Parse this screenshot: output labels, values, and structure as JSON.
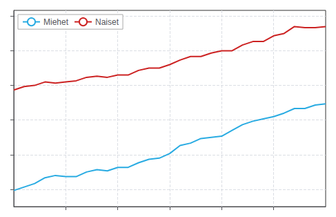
{
  "chart_data": {
    "type": "line",
    "x": [
      1979,
      1980,
      1981,
      1982,
      1983,
      1984,
      1985,
      1986,
      1987,
      1988,
      1989,
      1990,
      1991,
      1992,
      1993,
      1994,
      1995,
      1996,
      1997,
      1998,
      1999,
      2000,
      2001,
      2002,
      2003,
      2004,
      2005,
      2006,
      2007,
      2008,
      2009
    ],
    "series": [
      {
        "name": "Miehet",
        "color": "#29ABE2",
        "values": [
          68.9,
          69.2,
          69.5,
          70.0,
          70.2,
          70.1,
          70.1,
          70.5,
          70.7,
          70.6,
          70.9,
          70.9,
          71.3,
          71.6,
          71.7,
          72.1,
          72.8,
          73.0,
          73.4,
          73.5,
          73.6,
          74.1,
          74.6,
          74.9,
          75.1,
          75.3,
          75.6,
          76.0,
          76.0,
          76.3,
          76.4
        ]
      },
      {
        "name": "Naiset",
        "color": "#CC2222",
        "values": [
          77.6,
          77.9,
          78.0,
          78.3,
          78.2,
          78.3,
          78.4,
          78.7,
          78.8,
          78.7,
          78.9,
          78.9,
          79.3,
          79.5,
          79.5,
          79.8,
          80.2,
          80.5,
          80.5,
          80.8,
          81.0,
          81.0,
          81.5,
          81.8,
          81.8,
          82.3,
          82.5,
          83.1,
          83.0,
          83.0,
          83.1
        ]
      }
    ],
    "xlim": [
      1979,
      2009
    ],
    "xticks": [
      1984,
      1989,
      1994,
      1999,
      2004
    ],
    "ylim": [
      67.5,
      84.5
    ],
    "yticks": [
      69,
      72,
      75,
      78,
      81,
      84
    ],
    "grid": true,
    "legend": "upper left",
    "tick_labels": false
  }
}
